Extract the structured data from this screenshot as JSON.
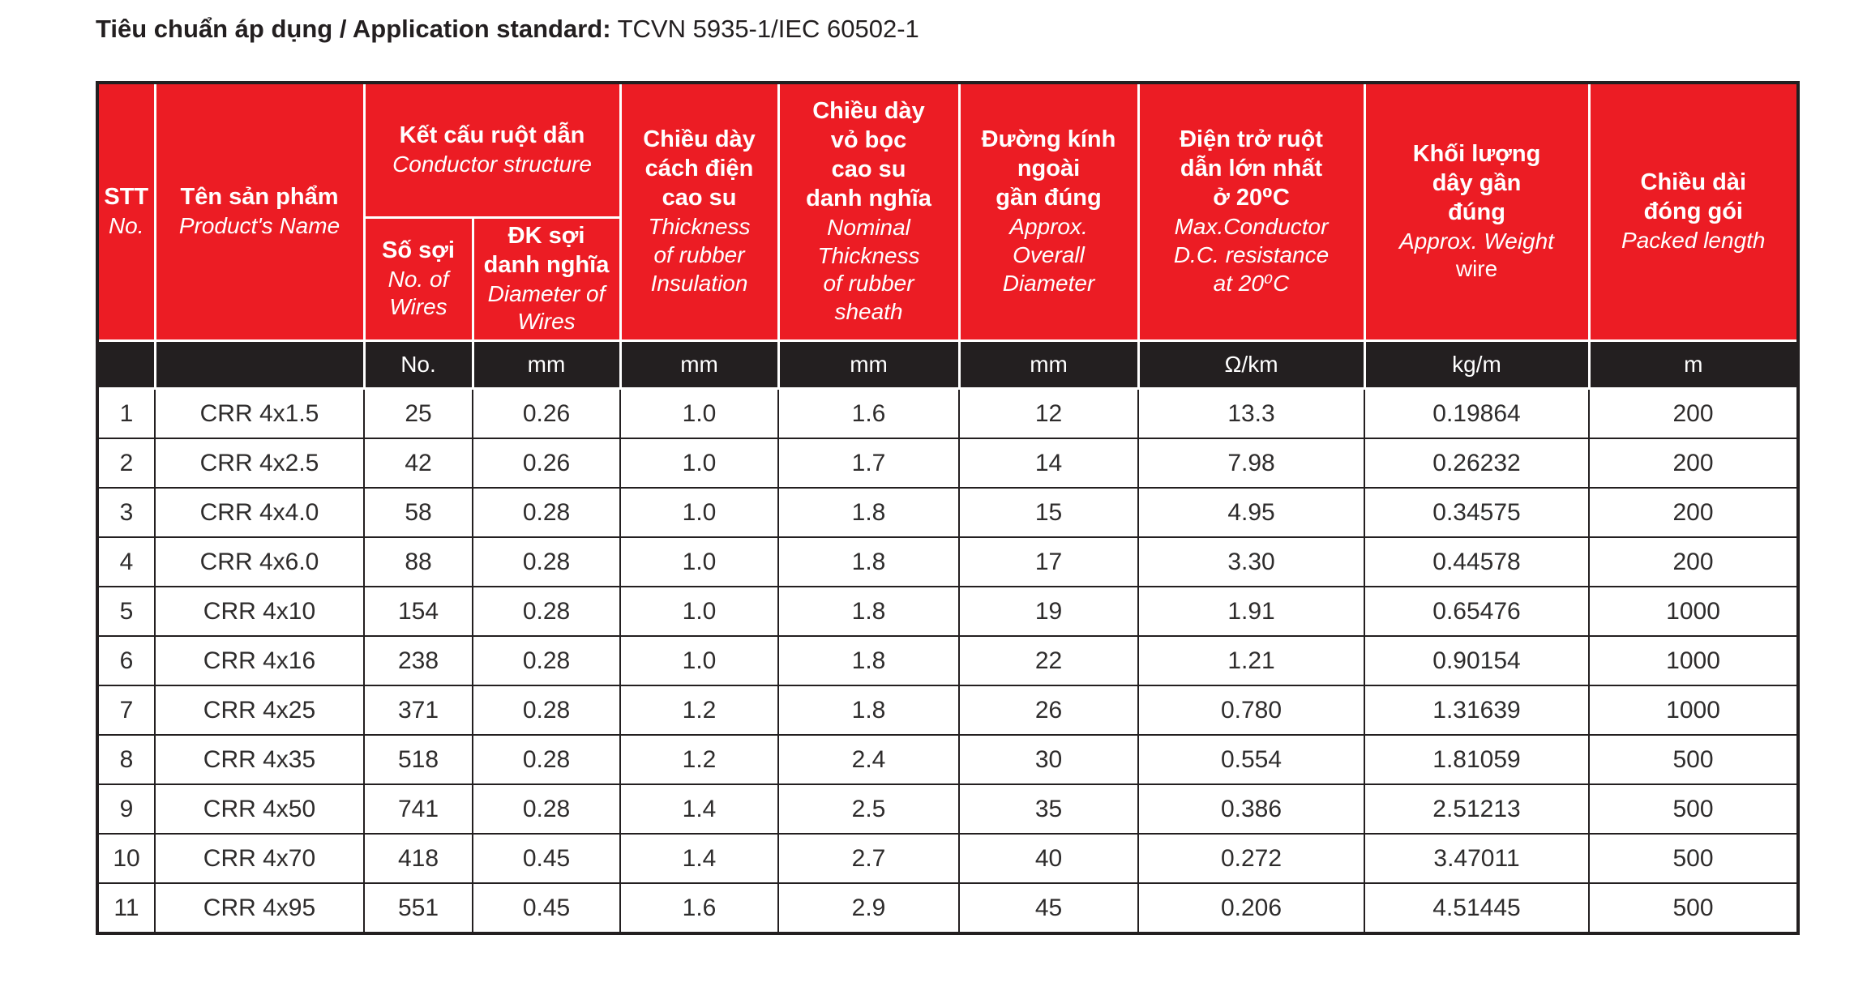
{
  "page_title": {
    "label_bold": "Tiêu chuẩn áp dụng / Application standard:",
    "label_value": "TCVN 5935-1/IEC 60502-1"
  },
  "colors": {
    "header_red": "#ec1c24",
    "units_black": "#231f20"
  },
  "table": {
    "headers": {
      "stt": {
        "vi": "STT",
        "en": "No."
      },
      "product_name": {
        "vi": "Tên sản phẩm",
        "en": "Product's Name"
      },
      "conductor_structure": {
        "vi": "Kết cấu ruột dẫn",
        "en": "Conductor structure"
      },
      "no_of_wires": {
        "vi": "Số sợi",
        "en": "No. of\nWires"
      },
      "wire_diameter": {
        "vi": "ĐK sợi\ndanh nghĩa",
        "en": "Diameter of\nWires"
      },
      "insulation_thickness": {
        "vi": "Chiều dày\ncách điện\ncao su",
        "en": "Thickness\nof rubber\nInsulation"
      },
      "sheath_thickness": {
        "vi": "Chiều dày\nvỏ bọc\ncao su\ndanh nghĩa",
        "en": "Nominal\nThickness\nof rubber\nsheath"
      },
      "overall_diameter": {
        "vi": "Đường kính\nngoài\ngần đúng",
        "en": "Approx.\nOverall\nDiameter"
      },
      "dc_resistance": {
        "vi": "Điện trở ruột\ndẫn lớn nhất\nở 20⁰C",
        "en": "Max.Conductor\nD.C. resistance\nat 20⁰C"
      },
      "weight": {
        "vi": "Khối lượng\ndây gần\nđúng",
        "en": "Approx. Weight",
        "en_regular": "wire"
      },
      "packed_length": {
        "vi": "Chiều dài\nđóng gói",
        "en": "Packed length"
      }
    },
    "units": [
      "",
      "",
      "No.",
      "mm",
      "mm",
      "mm",
      "mm",
      "Ω/km",
      "kg/m",
      "m"
    ],
    "rows": [
      [
        "1",
        "CRR 4x1.5",
        "25",
        "0.26",
        "1.0",
        "1.6",
        "12",
        "13.3",
        "0.19864",
        "200"
      ],
      [
        "2",
        "CRR 4x2.5",
        "42",
        "0.26",
        "1.0",
        "1.7",
        "14",
        "7.98",
        "0.26232",
        "200"
      ],
      [
        "3",
        "CRR 4x4.0",
        "58",
        "0.28",
        "1.0",
        "1.8",
        "15",
        "4.95",
        "0.34575",
        "200"
      ],
      [
        "4",
        "CRR 4x6.0",
        "88",
        "0.28",
        "1.0",
        "1.8",
        "17",
        "3.30",
        "0.44578",
        "200"
      ],
      [
        "5",
        "CRR 4x10",
        "154",
        "0.28",
        "1.0",
        "1.8",
        "19",
        "1.91",
        "0.65476",
        "1000"
      ],
      [
        "6",
        "CRR 4x16",
        "238",
        "0.28",
        "1.0",
        "1.8",
        "22",
        "1.21",
        "0.90154",
        "1000"
      ],
      [
        "7",
        "CRR 4x25",
        "371",
        "0.28",
        "1.2",
        "1.8",
        "26",
        "0.780",
        "1.31639",
        "1000"
      ],
      [
        "8",
        "CRR 4x35",
        "518",
        "0.28",
        "1.2",
        "2.4",
        "30",
        "0.554",
        "1.81059",
        "500"
      ],
      [
        "9",
        "CRR 4x50",
        "741",
        "0.28",
        "1.4",
        "2.5",
        "35",
        "0.386",
        "2.51213",
        "500"
      ],
      [
        "10",
        "CRR 4x70",
        "418",
        "0.45",
        "1.4",
        "2.7",
        "40",
        "0.272",
        "3.47011",
        "500"
      ],
      [
        "11",
        "CRR 4x95",
        "551",
        "0.45",
        "1.6",
        "2.9",
        "45",
        "0.206",
        "4.51445",
        "500"
      ]
    ]
  }
}
